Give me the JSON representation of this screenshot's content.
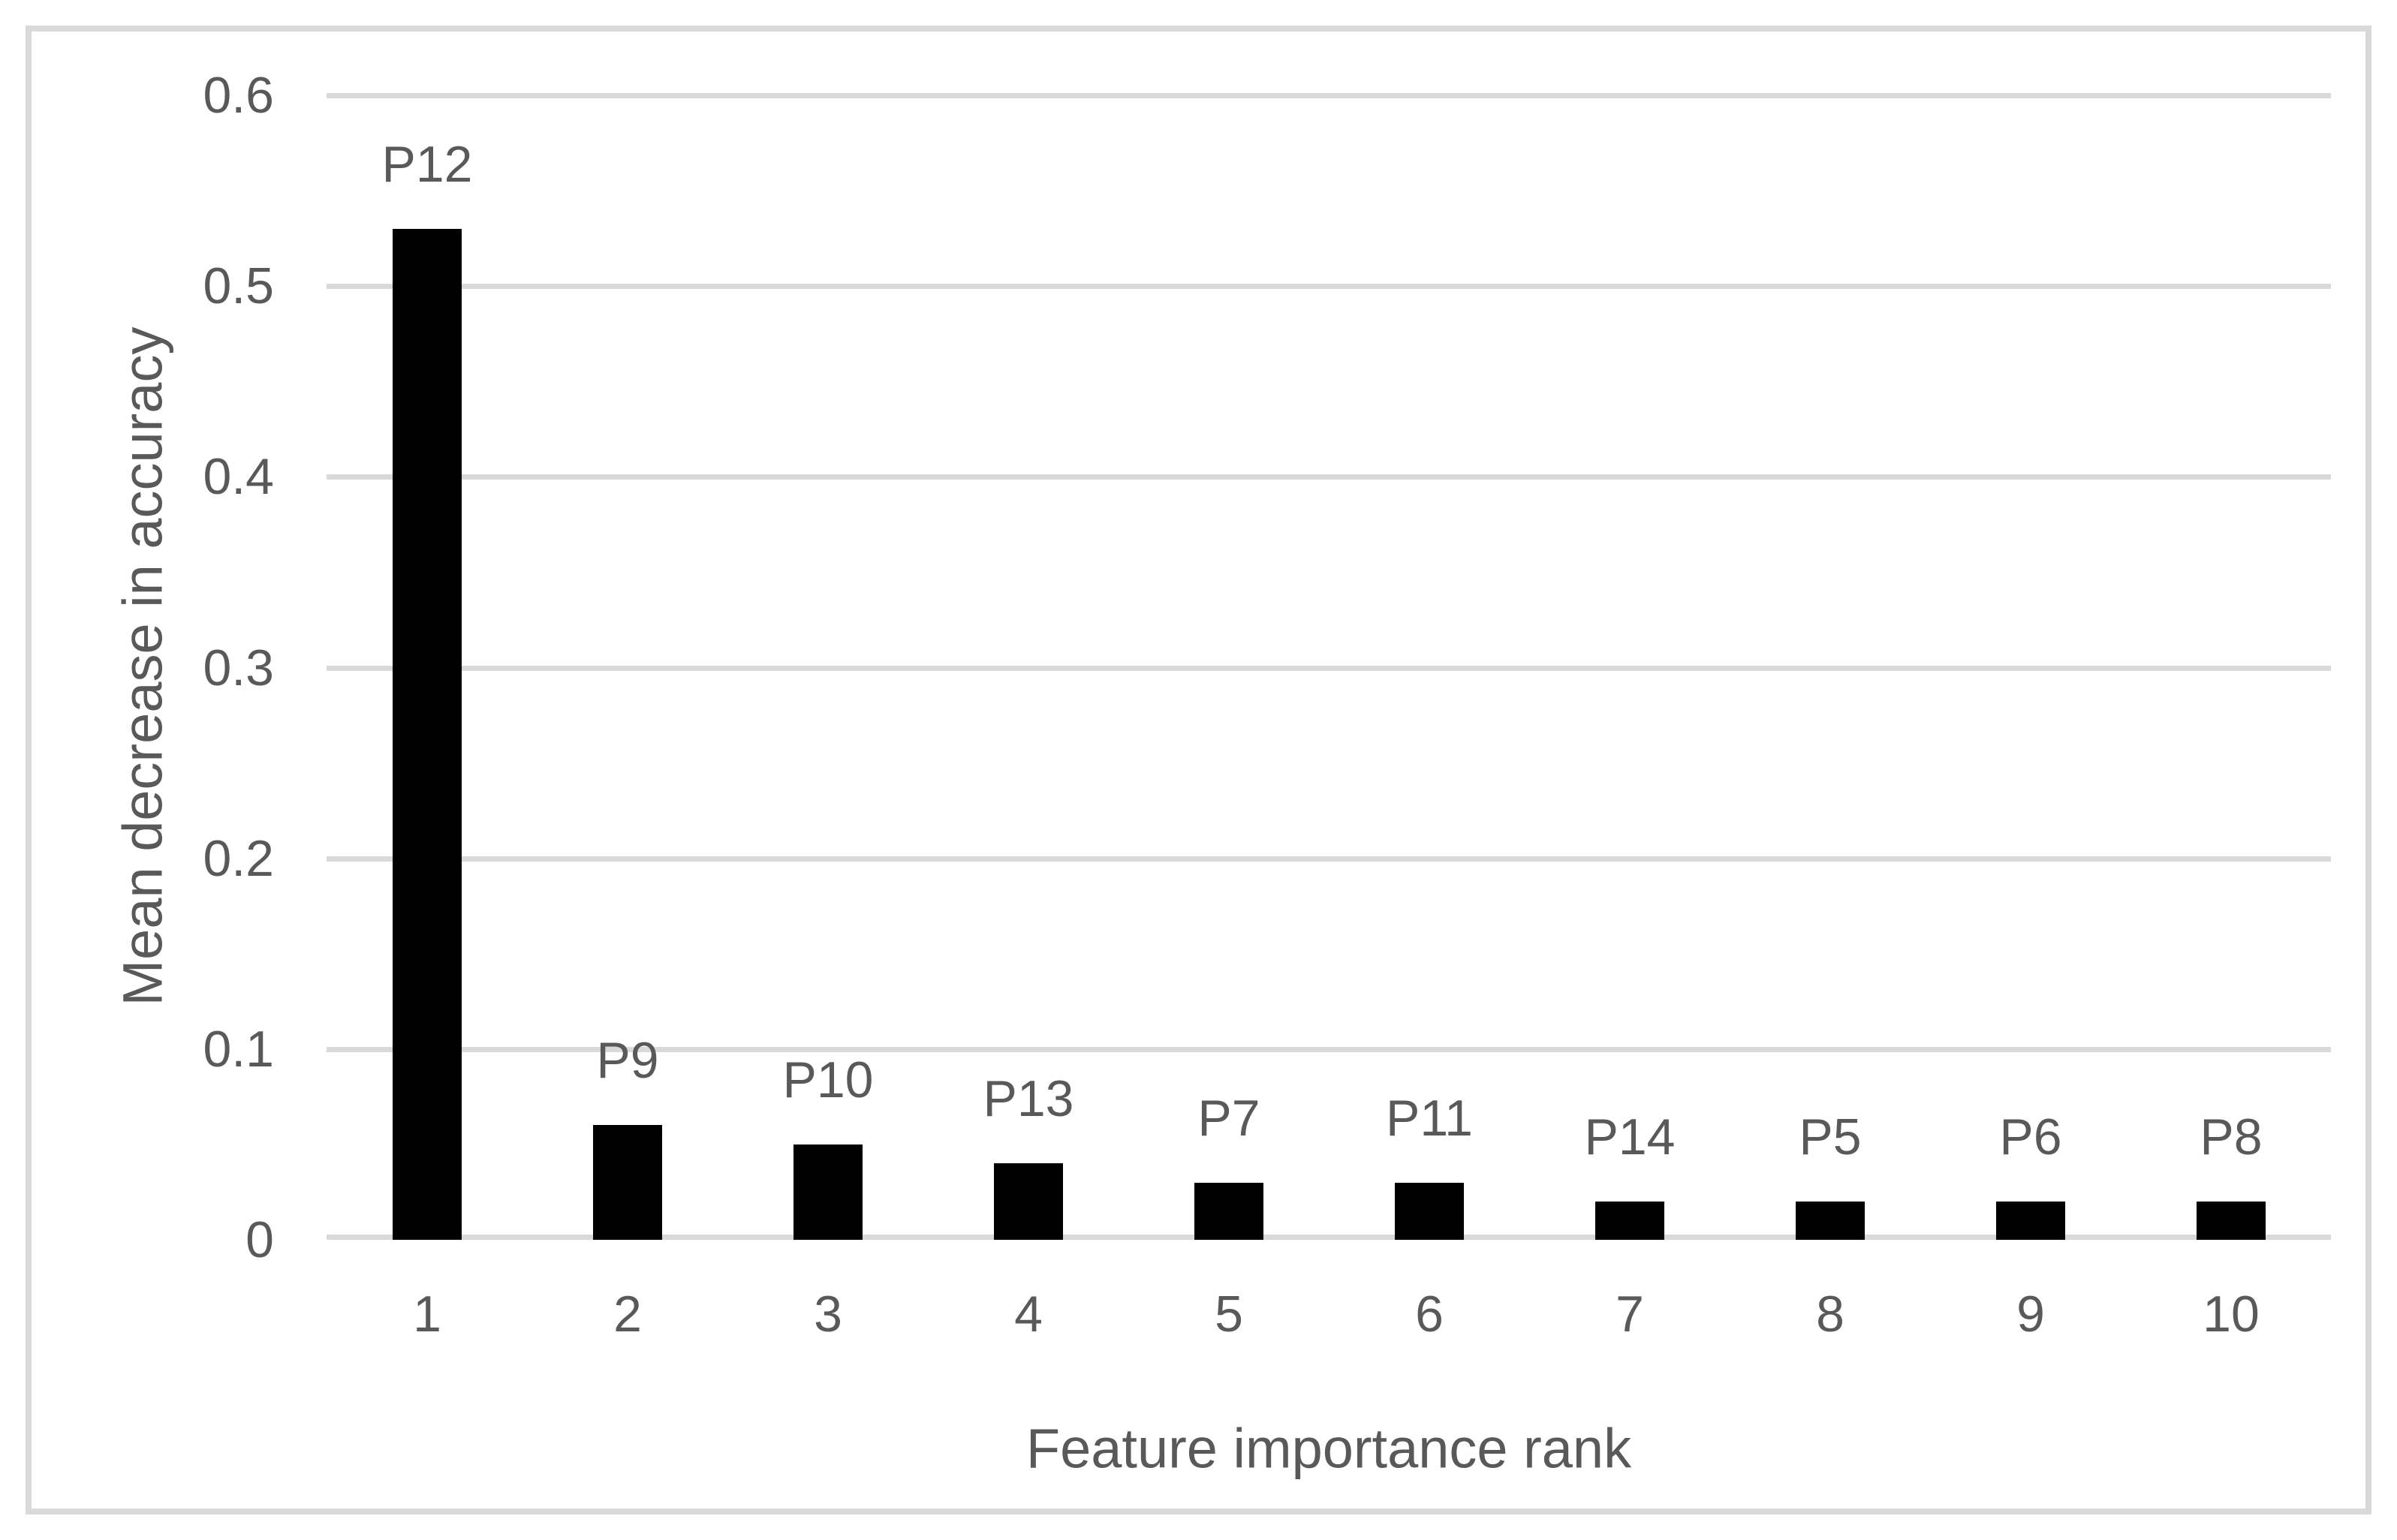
{
  "figure": {
    "background_color": "#ffffff",
    "frame_border_color": "#d9d9d9"
  },
  "chart_data": {
    "type": "bar",
    "title": "",
    "xlabel": "Feature importance rank",
    "ylabel": "Mean decrease in accuracy",
    "categories": [
      "1",
      "2",
      "3",
      "4",
      "5",
      "6",
      "7",
      "8",
      "9",
      "10"
    ],
    "bar_labels": [
      "P12",
      "P9",
      "P10",
      "P13",
      "P7",
      "P11",
      "P14",
      "P5",
      "P6",
      "P8"
    ],
    "values": [
      0.53,
      0.06,
      0.05,
      0.04,
      0.03,
      0.03,
      0.02,
      0.02,
      0.02,
      0.02
    ],
    "ylim": [
      0,
      0.6
    ],
    "ytick_step": 0.1,
    "ytick_labels": [
      "0.6",
      "0.5",
      "0.4",
      "0.3",
      "0.2",
      "0.1",
      "0"
    ],
    "bar_color": "#000000",
    "gridline_color": "#d9d9d9",
    "text_color": "#595959",
    "grid": true,
    "legend": false,
    "bar_width_fraction": 0.345
  }
}
